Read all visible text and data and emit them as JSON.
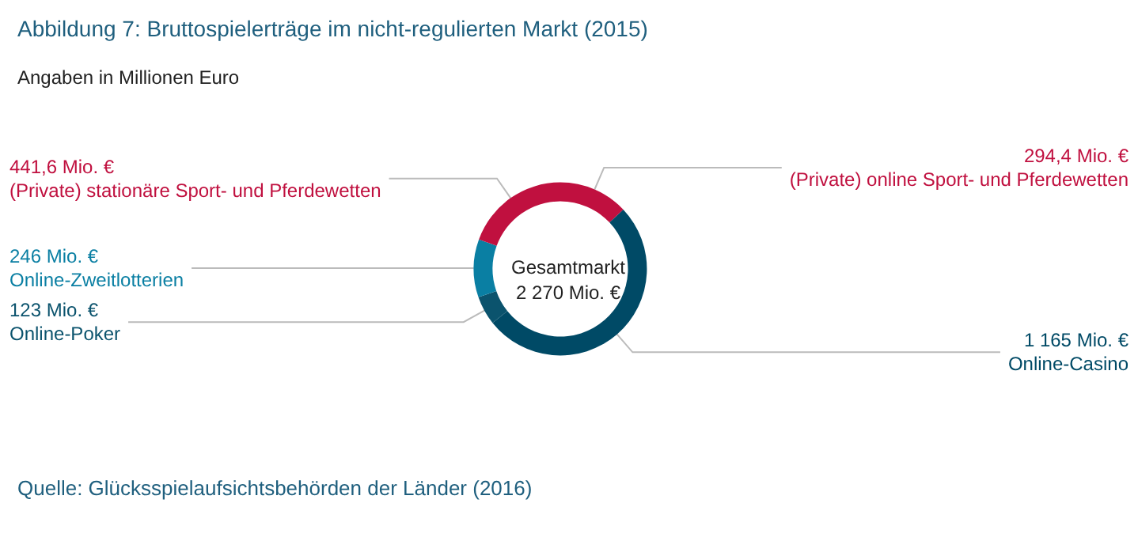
{
  "chart_data": {
    "type": "donut",
    "title": "Abbildung 7: Bruttospielerträge im nicht-regulierten Markt (2015)",
    "subtitle": "Angaben in Millionen Euro",
    "categories": [
      "(Private) online Sport- und Pferdewetten",
      "Online-Casino",
      "Online-Poker",
      "Online-Zweitlotterien",
      "(Private) stationäre Sport- und Pferdewetten"
    ],
    "values": [
      294.4,
      1165,
      123,
      246,
      441.6
    ],
    "value_labels": [
      "294,4 Mio. €",
      "1 165 Mio. €",
      "123 Mio. €",
      "246 Mio. €",
      "441,6 Mio. €"
    ],
    "colors": [
      "#c0103f",
      "#004a66",
      "#0b536d",
      "#0a7fa3",
      "#c0103f"
    ],
    "annotations": [
      "Gesamtmarkt\n2 270 Mio. €",
      "Quelle: Glücksspielaufsichtsbehörden der Länder (2016)"
    ],
    "legend": false
  }
}
